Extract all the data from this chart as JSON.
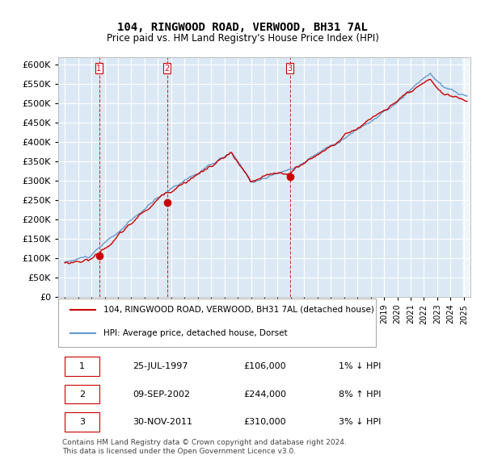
{
  "title": "104, RINGWOOD ROAD, VERWOOD, BH31 7AL",
  "subtitle": "Price paid vs. HM Land Registry's House Price Index (HPI)",
  "legend_line1": "104, RINGWOOD ROAD, VERWOOD, BH31 7AL (detached house)",
  "legend_line2": "HPI: Average price, detached house, Dorset",
  "transactions": [
    {
      "num": 1,
      "date": "25-JUL-1997",
      "price": 106000,
      "year": 1997.57,
      "hpi_pct": "1% ↓ HPI"
    },
    {
      "num": 2,
      "date": "09-SEP-2002",
      "price": 244000,
      "year": 2002.69,
      "hpi_pct": "8% ↑ HPI"
    },
    {
      "num": 3,
      "date": "30-NOV-2011",
      "price": 310000,
      "year": 2011.92,
      "hpi_pct": "3% ↓ HPI"
    }
  ],
  "footer": "Contains HM Land Registry data © Crown copyright and database right 2024.\nThis data is licensed under the Open Government Licence v3.0.",
  "red_line_color": "#cc0000",
  "blue_line_color": "#6699cc",
  "bg_color": "#dce9f5",
  "grid_color": "#ffffff",
  "ylim": [
    0,
    620000
  ],
  "yticks": [
    0,
    50000,
    100000,
    150000,
    200000,
    250000,
    300000,
    350000,
    400000,
    450000,
    500000,
    550000,
    600000
  ],
  "xlim_start": 1994.5,
  "xlim_end": 2025.5
}
